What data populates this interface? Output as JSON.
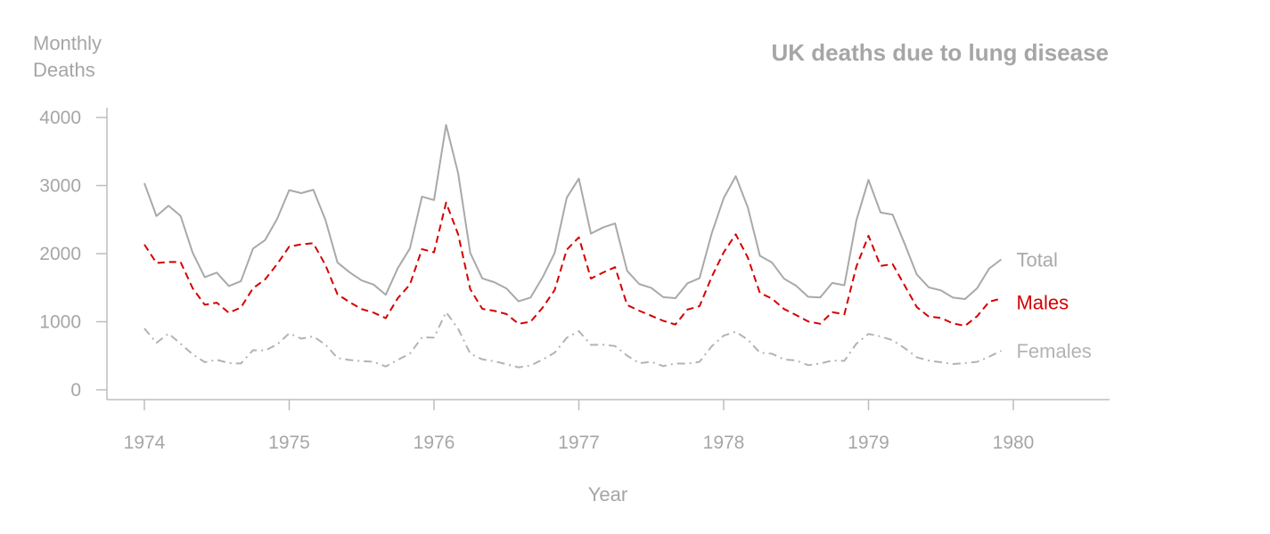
{
  "chart_data": {
    "type": "line",
    "title": "UK deaths due to lung disease",
    "ylabel": [
      "Monthly",
      "Deaths"
    ],
    "xlabel": "Year",
    "xlim": [
      1974,
      1980
    ],
    "ylim": [
      0,
      4000
    ],
    "x_ticks": [
      "1974",
      "1975",
      "1976",
      "1977",
      "1978",
      "1979",
      "1980"
    ],
    "y_ticks": [
      "0",
      "1000",
      "2000",
      "3000",
      "4000"
    ],
    "x_start": 1974,
    "x_step_months": 1,
    "grid": false,
    "legend": "direct labels at line ends (right)",
    "series": [
      {
        "name": "Total",
        "color": "#a9a9a9",
        "style": "solid",
        "values": [
          3035,
          2552,
          2704,
          2554,
          2014,
          1655,
          1721,
          1524,
          1596,
          2074,
          2199,
          2512,
          2933,
          2889,
          2938,
          2497,
          1870,
          1726,
          1607,
          1545,
          1396,
          1787,
          2076,
          2837,
          2787,
          3891,
          3179,
          2011,
          1636,
          1580,
          1489,
          1300,
          1356,
          1653,
          2013,
          2823,
          3102,
          2294,
          2385,
          2444,
          1748,
          1554,
          1498,
          1361,
          1346,
          1564,
          1640,
          2293,
          2815,
          3137,
          2679,
          1969,
          1870,
          1633,
          1529,
          1366,
          1357,
          1570,
          1535,
          2491,
          3084,
          2605,
          2573,
          2143,
          1693,
          1504,
          1461,
          1354,
          1333,
          1492,
          1781,
          1915
        ]
      },
      {
        "name": "Males",
        "color": "#d40000",
        "style": "dashed",
        "values": [
          2134,
          1863,
          1877,
          1877,
          1492,
          1249,
          1280,
          1131,
          1209,
          1492,
          1621,
          1846,
          2103,
          2137,
          2153,
          1833,
          1403,
          1288,
          1186,
          1133,
          1053,
          1347,
          1545,
          2066,
          2020,
          2750,
          2283,
          1479,
          1189,
          1160,
          1113,
          970,
          999,
          1208,
          1467,
          2059,
          2240,
          1634,
          1722,
          1801,
          1246,
          1162,
          1087,
          1013,
          959,
          1179,
          1229,
          1655,
          2019,
          2284,
          1942,
          1423,
          1340,
          1187,
          1098,
          1004,
          970,
          1140,
          1110,
          1812,
          2263,
          1820,
          1846,
          1531,
          1215,
          1075,
          1056,
          975,
          940,
          1081,
          1294,
          1341
        ]
      },
      {
        "name": "Females",
        "color": "#b3b3b3",
        "style": "dashdot",
        "values": [
          901,
          689,
          827,
          677,
          522,
          406,
          441,
          393,
          387,
          582,
          578,
          666,
          830,
          752,
          785,
          664,
          467,
          438,
          421,
          412,
          343,
          440,
          531,
          771,
          767,
          1141,
          896,
          532,
          447,
          420,
          376,
          330,
          357,
          445,
          546,
          764,
          862,
          660,
          663,
          643,
          502,
          392,
          411,
          348,
          387,
          385,
          411,
          638,
          796,
          853,
          737,
          546,
          530,
          446,
          431,
          362,
          387,
          430,
          425,
          679,
          821,
          785,
          727,
          612,
          478,
          429,
          405,
          379,
          393,
          411,
          487,
          574
        ]
      }
    ]
  }
}
